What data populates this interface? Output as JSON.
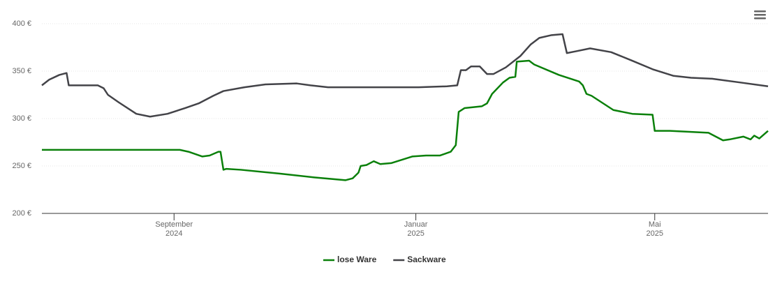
{
  "chart_data": {
    "type": "line",
    "ylim": [
      200,
      400
    ],
    "yticks": [
      {
        "value": 200,
        "label": "200 €"
      },
      {
        "value": 250,
        "label": "250 €"
      },
      {
        "value": 300,
        "label": "300 €"
      },
      {
        "value": 350,
        "label": "350 €"
      },
      {
        "value": 400,
        "label": "400 €"
      }
    ],
    "xlim": [
      2024.485,
      2025.485
    ],
    "xticks": [
      {
        "value": 2024.667,
        "label": "September\n2024"
      },
      {
        "value": 2025.0,
        "label": "Januar\n2025"
      },
      {
        "value": 2025.329,
        "label": "Mai\n2025"
      }
    ],
    "grid": true,
    "legend": "bottom",
    "series": [
      {
        "name": "lose Ware",
        "color": "#0a800a",
        "x": [
          2024.485,
          2024.675,
          2024.687,
          2024.706,
          2024.716,
          2024.728,
          2024.731,
          2024.735,
          2024.739,
          2024.759,
          2024.812,
          2024.86,
          2024.903,
          2024.913,
          2024.921,
          2024.924,
          2024.932,
          2024.942,
          2024.951,
          2024.966,
          2024.995,
          2025.014,
          2025.033,
          2025.048,
          2025.055,
          2025.059,
          2025.067,
          2025.091,
          2025.098,
          2025.105,
          2025.12,
          2025.129,
          2025.137,
          2025.139,
          2025.156,
          2025.163,
          2025.197,
          2025.225,
          2025.23,
          2025.235,
          2025.242,
          2025.272,
          2025.298,
          2025.326,
          2025.329,
          2025.35,
          2025.403,
          2025.423,
          2025.432,
          2025.451,
          2025.461,
          2025.466,
          2025.473,
          2025.485
        ],
        "values": [
          267,
          267,
          265,
          260,
          261,
          265,
          265,
          246,
          247,
          246,
          242,
          238,
          235,
          237,
          243,
          250,
          251,
          255,
          252,
          253,
          260,
          261,
          261,
          265,
          272,
          307,
          311,
          313,
          316,
          326,
          338,
          343,
          344,
          360,
          361,
          357,
          346,
          339,
          335,
          326,
          324,
          309,
          305,
          304,
          287,
          287,
          285,
          277,
          278,
          281,
          278,
          282,
          279,
          287
        ]
      },
      {
        "name": "Sackware",
        "color": "#434348",
        "x": [
          2024.485,
          2024.495,
          2024.509,
          2024.519,
          2024.522,
          2024.562,
          2024.57,
          2024.576,
          2024.591,
          2024.615,
          2024.634,
          2024.658,
          2024.682,
          2024.701,
          2024.721,
          2024.735,
          2024.764,
          2024.793,
          2024.836,
          2024.855,
          2024.879,
          2024.947,
          2025.004,
          2025.043,
          2025.057,
          2025.062,
          2025.069,
          2025.076,
          2025.088,
          2025.098,
          2025.107,
          2025.124,
          2025.144,
          2025.158,
          2025.17,
          2025.187,
          2025.202,
          2025.208,
          2025.221,
          2025.24,
          2025.269,
          2025.298,
          2025.326,
          2025.355,
          2025.379,
          2025.408,
          2025.447,
          2025.485
        ],
        "values": [
          335,
          341,
          346,
          348,
          335,
          335,
          332,
          325,
          317,
          305,
          302,
          305,
          311,
          316,
          324,
          329,
          333,
          336,
          337,
          335,
          333,
          333,
          333,
          334,
          335,
          351,
          351,
          355,
          355,
          347,
          347,
          354,
          366,
          378,
          385,
          388,
          389,
          369,
          371,
          374,
          370,
          361,
          352,
          345,
          343,
          342,
          338,
          334
        ]
      }
    ]
  }
}
